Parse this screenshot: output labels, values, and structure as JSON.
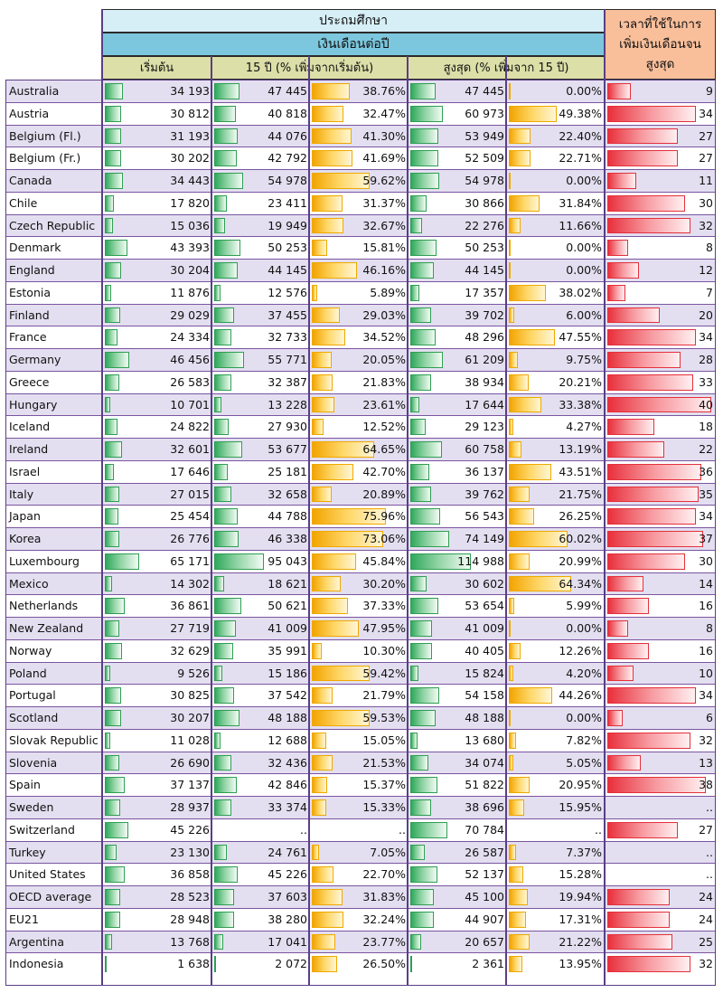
{
  "headers": {
    "education_level": "ประถมศึกษา",
    "annual_salary": "เงินเดือนต่อปี",
    "starting": "เริ่มต้น",
    "after15": "15 ปี (% เพิ่มจากเริ่มต้น)",
    "top": "สูงสุด (% เพิ่มจาก 15 ปี)",
    "years_to_top": "เวลาที่ใช้ในการเพิ่มเงินเดือนจนสูงสุด"
  },
  "colors": {
    "green": "#2fa85c",
    "orange": "#f2a400",
    "red": "#e8303c",
    "row_shade": "#e3dff0",
    "divider": "#5a3e86"
  },
  "chart_data": {
    "type": "table",
    "columns": [
      "เริ่มต้น",
      "15 ปี",
      "% เพิ่มจากเริ่มต้น",
      "สูงสุด",
      "% เพิ่มจาก 15 ปี",
      "เวลาที่ใช้ในการเพิ่มเงินเดือนจนสูงสุด"
    ],
    "rows": [
      {
        "country": "Australia",
        "start": "34 193",
        "y15": "47 445",
        "pct15": "38.76%",
        "top": "47 445",
        "pcttop": "0.00%",
        "years": "9"
      },
      {
        "country": "Austria",
        "start": "30 812",
        "y15": "40 818",
        "pct15": "32.47%",
        "top": "60 973",
        "pcttop": "49.38%",
        "years": "34"
      },
      {
        "country": "Belgium (Fl.)",
        "start": "31 193",
        "y15": "44 076",
        "pct15": "41.30%",
        "top": "53 949",
        "pcttop": "22.40%",
        "years": "27"
      },
      {
        "country": "Belgium (Fr.)",
        "start": "30 202",
        "y15": "42 792",
        "pct15": "41.69%",
        "top": "52 509",
        "pcttop": "22.71%",
        "years": "27"
      },
      {
        "country": "Canada",
        "start": "34 443",
        "y15": "54 978",
        "pct15": "59.62%",
        "top": "54 978",
        "pcttop": "0.00%",
        "years": "11"
      },
      {
        "country": "Chile",
        "start": "17 820",
        "y15": "23 411",
        "pct15": "31.37%",
        "top": "30 866",
        "pcttop": "31.84%",
        "years": "30"
      },
      {
        "country": "Czech Republic",
        "start": "15 036",
        "y15": "19 949",
        "pct15": "32.67%",
        "top": "22 276",
        "pcttop": "11.66%",
        "years": "32"
      },
      {
        "country": "Denmark",
        "start": "43 393",
        "y15": "50 253",
        "pct15": "15.81%",
        "top": "50 253",
        "pcttop": "0.00%",
        "years": "8"
      },
      {
        "country": "England",
        "start": "30 204",
        "y15": "44 145",
        "pct15": "46.16%",
        "top": "44 145",
        "pcttop": "0.00%",
        "years": "12"
      },
      {
        "country": "Estonia",
        "start": "11 876",
        "y15": "12 576",
        "pct15": "5.89%",
        "top": "17 357",
        "pcttop": "38.02%",
        "years": "7"
      },
      {
        "country": "Finland",
        "start": "29 029",
        "y15": "37 455",
        "pct15": "29.03%",
        "top": "39 702",
        "pcttop": "6.00%",
        "years": "20"
      },
      {
        "country": "France",
        "start": "24 334",
        "y15": "32 733",
        "pct15": "34.52%",
        "top": "48 296",
        "pcttop": "47.55%",
        "years": "34"
      },
      {
        "country": "Germany",
        "start": "46 456",
        "y15": "55 771",
        "pct15": "20.05%",
        "top": "61 209",
        "pcttop": "9.75%",
        "years": "28"
      },
      {
        "country": "Greece",
        "start": "26 583",
        "y15": "32 387",
        "pct15": "21.83%",
        "top": "38 934",
        "pcttop": "20.21%",
        "years": "33"
      },
      {
        "country": "Hungary",
        "start": "10 701",
        "y15": "13 228",
        "pct15": "23.61%",
        "top": "17 644",
        "pcttop": "33.38%",
        "years": "40"
      },
      {
        "country": "Iceland",
        "start": "24 822",
        "y15": "27 930",
        "pct15": "12.52%",
        "top": "29 123",
        "pcttop": "4.27%",
        "years": "18"
      },
      {
        "country": "Ireland",
        "start": "32 601",
        "y15": "53 677",
        "pct15": "64.65%",
        "top": "60 758",
        "pcttop": "13.19%",
        "years": "22"
      },
      {
        "country": "Israel",
        "start": "17 646",
        "y15": "25 181",
        "pct15": "42.70%",
        "top": "36 137",
        "pcttop": "43.51%",
        "years": "36"
      },
      {
        "country": "Italy",
        "start": "27 015",
        "y15": "32 658",
        "pct15": "20.89%",
        "top": "39 762",
        "pcttop": "21.75%",
        "years": "35"
      },
      {
        "country": "Japan",
        "start": "25 454",
        "y15": "44 788",
        "pct15": "75.96%",
        "top": "56 543",
        "pcttop": "26.25%",
        "years": "34"
      },
      {
        "country": "Korea",
        "start": "26 776",
        "y15": "46 338",
        "pct15": "73.06%",
        "top": "74 149",
        "pcttop": "60.02%",
        "years": "37"
      },
      {
        "country": "Luxembourg",
        "start": "65 171",
        "y15": "95 043",
        "pct15": "45.84%",
        "top": "114 988",
        "pcttop": "20.99%",
        "years": "30"
      },
      {
        "country": "Mexico",
        "start": "14 302",
        "y15": "18 621",
        "pct15": "30.20%",
        "top": "30 602",
        "pcttop": "64.34%",
        "years": "14"
      },
      {
        "country": "Netherlands",
        "start": "36 861",
        "y15": "50 621",
        "pct15": "37.33%",
        "top": "53 654",
        "pcttop": "5.99%",
        "years": "16"
      },
      {
        "country": "New Zealand",
        "start": "27 719",
        "y15": "41 009",
        "pct15": "47.95%",
        "top": "41 009",
        "pcttop": "0.00%",
        "years": "8"
      },
      {
        "country": "Norway",
        "start": "32 629",
        "y15": "35 991",
        "pct15": "10.30%",
        "top": "40 405",
        "pcttop": "12.26%",
        "years": "16"
      },
      {
        "country": "Poland",
        "start": "9 526",
        "y15": "15 186",
        "pct15": "59.42%",
        "top": "15 824",
        "pcttop": "4.20%",
        "years": "10"
      },
      {
        "country": "Portugal",
        "start": "30 825",
        "y15": "37 542",
        "pct15": "21.79%",
        "top": "54 158",
        "pcttop": "44.26%",
        "years": "34"
      },
      {
        "country": "Scotland",
        "start": "30 207",
        "y15": "48 188",
        "pct15": "59.53%",
        "top": "48 188",
        "pcttop": "0.00%",
        "years": "6"
      },
      {
        "country": "Slovak Republic",
        "start": "11 028",
        "y15": "12 688",
        "pct15": "15.05%",
        "top": "13 680",
        "pcttop": "7.82%",
        "years": "32"
      },
      {
        "country": "Slovenia",
        "start": "26 690",
        "y15": "32 436",
        "pct15": "21.53%",
        "top": "34 074",
        "pcttop": "5.05%",
        "years": "13"
      },
      {
        "country": "Spain",
        "start": "37 137",
        "y15": "42 846",
        "pct15": "15.37%",
        "top": "51 822",
        "pcttop": "20.95%",
        "years": "38"
      },
      {
        "country": "Sweden",
        "start": "28 937",
        "y15": "33 374",
        "pct15": "15.33%",
        "top": "38 696",
        "pcttop": "15.95%",
        "years": ".."
      },
      {
        "country": "Switzerland",
        "start": "45 226",
        "y15": "..",
        "pct15": "..",
        "top": "70 784",
        "pcttop": "..",
        "years": "27"
      },
      {
        "country": "Turkey",
        "start": "23 130",
        "y15": "24 761",
        "pct15": "7.05%",
        "top": "26 587",
        "pcttop": "7.37%",
        "years": ".."
      },
      {
        "country": "United States",
        "start": "36 858",
        "y15": "45 226",
        "pct15": "22.70%",
        "top": "52 137",
        "pcttop": "15.28%",
        "years": ".."
      },
      {
        "country": "OECD average",
        "start": "28 523",
        "y15": "37 603",
        "pct15": "31.83%",
        "top": "45 100",
        "pcttop": "19.94%",
        "years": "24"
      },
      {
        "country": "EU21",
        "start": "28 948",
        "y15": "38 280",
        "pct15": "32.24%",
        "top": "44 907",
        "pcttop": "17.31%",
        "years": "24"
      },
      {
        "country": "Argentina",
        "start": "13 768",
        "y15": "17 041",
        "pct15": "23.77%",
        "top": "20 657",
        "pcttop": "21.22%",
        "years": "25"
      },
      {
        "country": "Indonesia",
        "start": "1 638",
        "y15": "2 072",
        "pct15": "26.50%",
        "top": "2 361",
        "pcttop": "13.95%",
        "years": "32"
      }
    ]
  }
}
